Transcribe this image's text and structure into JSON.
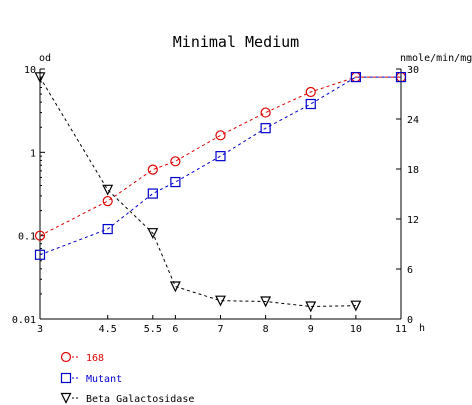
{
  "chart_data": {
    "type": "line",
    "title": "Minimal Medium",
    "xlabel": "h",
    "ylabel_left": "od",
    "ylabel_right": "nmole/min/mg",
    "x_ticks": [
      3,
      4.5,
      5.5,
      6,
      7,
      8,
      9,
      10,
      11
    ],
    "x_tick_labels": [
      "3",
      "4.5",
      "5.5",
      "6",
      "7",
      "8",
      "9",
      "10",
      "11"
    ],
    "xlim": [
      3,
      11
    ],
    "y_left": {
      "scale": "log",
      "lim": [
        0.01,
        10
      ],
      "ticks": [
        0.01,
        0.1,
        1,
        10
      ],
      "tick_labels": [
        "0.01",
        "0.1",
        "1",
        "10"
      ]
    },
    "y_right": {
      "scale": "linear",
      "lim": [
        0,
        30
      ],
      "ticks": [
        0,
        6,
        12,
        18,
        24,
        30
      ],
      "tick_labels": [
        "0",
        "6",
        "12",
        "18",
        "24",
        "30"
      ]
    },
    "grid": false,
    "legend_position": "bottom-left",
    "series": [
      {
        "name": "168",
        "axis": "left",
        "color": "#dd0000",
        "marker": "circle",
        "x": [
          3,
          4.5,
          5.5,
          6,
          7,
          8,
          9,
          10,
          11
        ],
        "y": [
          0.1,
          0.26,
          0.62,
          0.78,
          1.6,
          3.0,
          5.3,
          8.0,
          8.0
        ]
      },
      {
        "name": "Mutant",
        "axis": "left",
        "color": "#0000cc",
        "marker": "square",
        "x": [
          3,
          4.5,
          5.5,
          6,
          7,
          8,
          9,
          10,
          11
        ],
        "y": [
          0.059,
          0.12,
          0.32,
          0.44,
          0.9,
          1.95,
          3.8,
          8.0,
          8.0
        ]
      },
      {
        "name": "Beta Galactosidase",
        "axis": "right",
        "color": "#000000",
        "marker": "triangle-down",
        "x": [
          3,
          4.5,
          5.5,
          6,
          7,
          8,
          9,
          10
        ],
        "y": [
          29,
          15.5,
          10.3,
          3.9,
          2.2,
          2.1,
          1.5,
          1.6
        ]
      }
    ]
  }
}
